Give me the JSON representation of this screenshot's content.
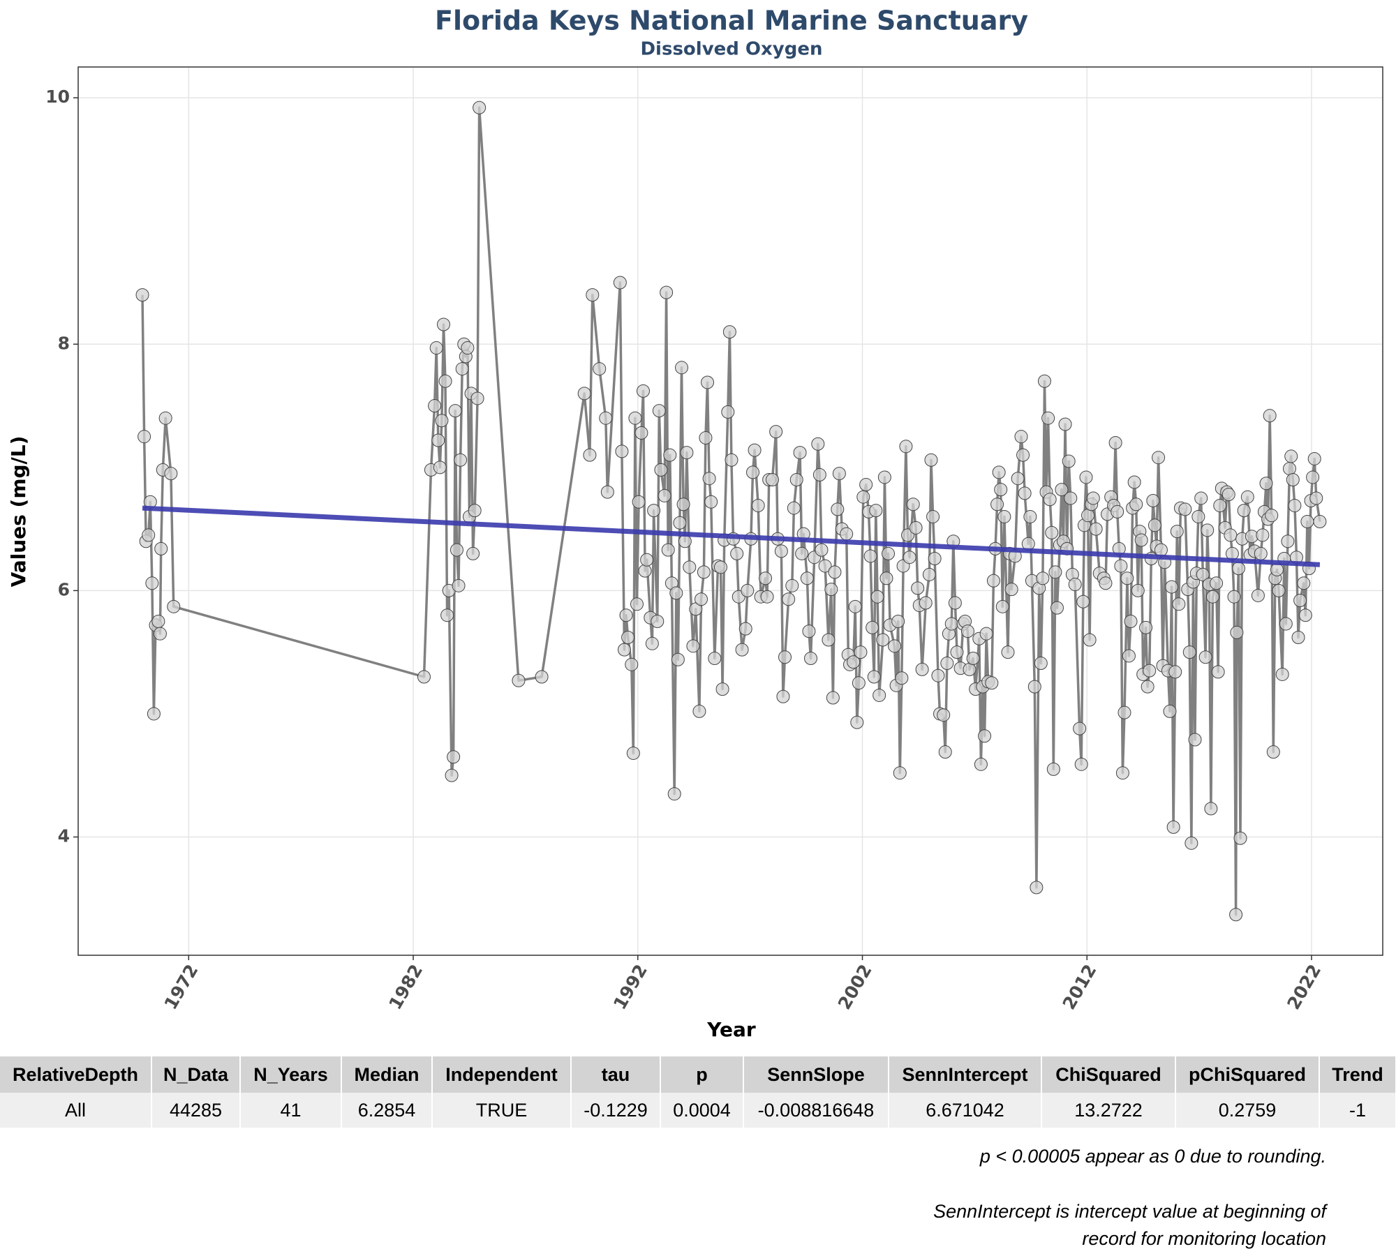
{
  "chart_data": {
    "type": "line",
    "title": "Florida Keys National Marine Sanctuary",
    "subtitle": "Dissolved Oxygen",
    "x_label": "Year",
    "y_label": "Values (mg/L)",
    "xlim": [
      1967.08,
      2025.17
    ],
    "ylim": [
      3.04,
      10.25
    ],
    "xticks": [
      1972,
      1982,
      1992,
      2002,
      2012,
      2022
    ],
    "yticks": [
      4,
      6,
      8,
      10
    ],
    "grid": true,
    "color": "#808080",
    "marker_color": "#d3d3d3",
    "x": [
      1969.94,
      1970.02,
      1970.1,
      1970.21,
      1970.29,
      1970.37,
      1970.45,
      1970.53,
      1970.65,
      1970.73,
      1970.77,
      1970.85,
      1970.97,
      1971.21,
      1971.33,
      1982.48,
      1982.79,
      1982.95,
      1983.03,
      1983.11,
      1983.19,
      1983.27,
      1983.35,
      1983.43,
      1983.51,
      1983.59,
      1983.71,
      1983.79,
      1983.87,
      1983.94,
      1984.02,
      1984.1,
      1984.18,
      1984.26,
      1984.34,
      1984.42,
      1984.5,
      1984.58,
      1984.66,
      1984.74,
      1984.86,
      1984.94,
      1986.69,
      1987.72,
      1989.62,
      1989.86,
      1989.98,
      1990.29,
      1990.57,
      1990.65,
      1991.21,
      1991.29,
      1991.4,
      1991.48,
      1991.56,
      1991.72,
      1991.8,
      1991.88,
      1991.96,
      1992.04,
      1992.16,
      1992.24,
      1992.32,
      1992.4,
      1992.56,
      1992.64,
      1992.71,
      1992.87,
      1992.95,
      1993.03,
      1993.19,
      1993.27,
      1993.35,
      1993.43,
      1993.51,
      1993.63,
      1993.71,
      1993.79,
      1993.87,
      1993.95,
      1994.03,
      1994.1,
      1994.18,
      1994.3,
      1994.46,
      1994.58,
      1994.74,
      1994.82,
      1994.94,
      1995.02,
      1995.1,
      1995.18,
      1995.26,
      1995.42,
      1995.57,
      1995.69,
      1995.77,
      1995.85,
      1996.01,
      1996.09,
      1996.17,
      1996.25,
      1996.41,
      1996.49,
      1996.64,
      1996.8,
      1996.88,
      1997.04,
      1997.12,
      1997.2,
      1997.36,
      1997.48,
      1997.68,
      1997.76,
      1997.84,
      1997.99,
      1998.15,
      1998.23,
      1998.39,
      1998.47,
      1998.55,
      1998.71,
      1998.87,
      1998.95,
      1999.07,
      1999.22,
      1999.3,
      1999.38,
      1999.54,
      1999.62,
      1999.7,
      1999.86,
      2000.02,
      2000.1,
      2000.18,
      2000.34,
      2000.49,
      2000.61,
      2000.69,
      2000.77,
      2000.89,
      2000.97,
      2001.09,
      2001.29,
      2001.37,
      2001.44,
      2001.6,
      2001.68,
      2001.76,
      2001.84,
      2001.92,
      2002.04,
      2002.16,
      2002.28,
      2002.36,
      2002.44,
      2002.52,
      2002.6,
      2002.67,
      2002.75,
      2002.91,
      2002.99,
      2003.07,
      2003.15,
      2003.23,
      2003.43,
      2003.51,
      2003.59,
      2003.67,
      2003.75,
      2003.82,
      2003.94,
      2004.02,
      2004.1,
      2004.26,
      2004.38,
      2004.46,
      2004.54,
      2004.66,
      2004.82,
      2004.98,
      2005.06,
      2005.14,
      2005.22,
      2005.37,
      2005.45,
      2005.61,
      2005.69,
      2005.77,
      2005.85,
      2005.97,
      2006.05,
      2006.13,
      2006.21,
      2006.37,
      2006.49,
      2006.57,
      2006.69,
      2006.77,
      2006.93,
      2007.04,
      2007.2,
      2007.28,
      2007.36,
      2007.44,
      2007.52,
      2007.6,
      2007.76,
      2007.84,
      2007.92,
      2008.0,
      2008.08,
      2008.16,
      2008.24,
      2008.32,
      2008.48,
      2008.56,
      2008.64,
      2008.8,
      2008.92,
      2009.07,
      2009.15,
      2009.23,
      2009.39,
      2009.47,
      2009.55,
      2009.67,
      2009.75,
      2009.87,
      2009.95,
      2010.03,
      2010.11,
      2010.19,
      2010.27,
      2010.35,
      2010.43,
      2010.51,
      2010.59,
      2010.67,
      2010.79,
      2010.87,
      2010.95,
      2011.03,
      2011.11,
      2011.19,
      2011.27,
      2011.35,
      2011.47,
      2011.67,
      2011.75,
      2011.83,
      2011.88,
      2011.96,
      2012.04,
      2012.12,
      2012.2,
      2012.28,
      2012.4,
      2012.56,
      2012.75,
      2012.83,
      2012.91,
      2013.07,
      2013.19,
      2013.27,
      2013.35,
      2013.43,
      2013.51,
      2013.59,
      2013.67,
      2013.79,
      2013.87,
      2013.95,
      2014.03,
      2014.11,
      2014.19,
      2014.27,
      2014.35,
      2014.42,
      2014.5,
      2014.62,
      2014.7,
      2014.78,
      2014.86,
      2014.94,
      2015.02,
      2015.1,
      2015.18,
      2015.3,
      2015.38,
      2015.46,
      2015.61,
      2015.69,
      2015.77,
      2015.85,
      2015.93,
      2016.01,
      2016.09,
      2016.17,
      2016.37,
      2016.49,
      2016.57,
      2016.65,
      2016.73,
      2016.81,
      2016.88,
      2016.96,
      2017.08,
      2017.16,
      2017.28,
      2017.36,
      2017.44,
      2017.52,
      2017.6,
      2017.76,
      2017.84,
      2017.92,
      2018.0,
      2018.15,
      2018.23,
      2018.31,
      2018.39,
      2018.47,
      2018.55,
      2018.63,
      2018.67,
      2018.75,
      2018.83,
      2018.91,
      2018.99,
      2019.15,
      2019.27,
      2019.34,
      2019.46,
      2019.62,
      2019.74,
      2019.82,
      2019.9,
      2019.98,
      2020.06,
      2020.14,
      2020.22,
      2020.3,
      2020.38,
      2020.46,
      2020.54,
      2020.7,
      2020.78,
      2020.86,
      2020.94,
      2021.02,
      2021.09,
      2021.17,
      2021.25,
      2021.33,
      2021.41,
      2021.49,
      2021.65,
      2021.73,
      2021.81,
      2021.89,
      2021.97,
      2022.05,
      2022.13,
      2022.21,
      2022.37
    ],
    "values": [
      8.4,
      7.25,
      6.4,
      6.45,
      6.72,
      6.06,
      5.0,
      5.72,
      5.75,
      5.65,
      6.34,
      6.98,
      7.4,
      6.95,
      5.87,
      5.3,
      6.98,
      7.5,
      7.97,
      7.22,
      7.0,
      7.38,
      8.16,
      7.7,
      5.8,
      6.0,
      4.5,
      4.65,
      7.46,
      6.33,
      6.04,
      7.06,
      7.8,
      8.0,
      7.9,
      7.97,
      6.6,
      7.6,
      6.3,
      6.65,
      7.56,
      9.92,
      5.27,
      5.3,
      7.6,
      7.1,
      8.4,
      7.8,
      7.4,
      6.8,
      8.5,
      7.13,
      5.52,
      5.8,
      5.62,
      5.4,
      4.68,
      7.4,
      5.89,
      6.72,
      7.28,
      7.62,
      6.16,
      6.25,
      5.78,
      5.57,
      6.65,
      5.75,
      7.46,
      6.98,
      6.77,
      8.42,
      6.33,
      7.1,
      6.06,
      4.35,
      5.98,
      5.44,
      6.55,
      7.81,
      6.7,
      6.4,
      7.12,
      6.19,
      5.55,
      5.85,
      5.02,
      5.93,
      6.15,
      7.24,
      7.69,
      6.91,
      6.72,
      5.45,
      6.2,
      6.19,
      5.2,
      6.41,
      7.45,
      8.1,
      7.06,
      6.42,
      6.3,
      5.95,
      5.52,
      5.69,
      6.0,
      6.42,
      6.96,
      7.14,
      6.69,
      5.95,
      6.1,
      5.95,
      6.9,
      6.9,
      7.29,
      6.42,
      6.32,
      5.14,
      5.46,
      5.93,
      6.04,
      6.67,
      6.9,
      7.12,
      6.3,
      6.46,
      6.1,
      5.67,
      5.45,
      6.27,
      7.19,
      6.94,
      6.33,
      6.2,
      5.6,
      6.01,
      5.13,
      6.15,
      6.66,
      6.95,
      6.5,
      6.46,
      5.48,
      5.4,
      5.42,
      5.87,
      4.93,
      5.25,
      5.5,
      6.76,
      6.86,
      6.64,
      6.28,
      5.7,
      5.3,
      6.65,
      5.95,
      5.15,
      5.6,
      6.92,
      6.1,
      6.3,
      5.72,
      5.55,
      5.23,
      5.75,
      4.52,
      5.29,
      6.2,
      7.17,
      6.45,
      6.27,
      6.7,
      6.51,
      6.02,
      5.88,
      5.36,
      5.9,
      6.13,
      7.06,
      6.6,
      6.26,
      5.31,
      5.0,
      4.99,
      4.69,
      5.41,
      5.65,
      5.73,
      6.4,
      5.9,
      5.5,
      5.37,
      5.73,
      5.75,
      5.67,
      5.36,
      5.45,
      5.2,
      5.61,
      4.59,
      5.22,
      4.82,
      5.65,
      5.26,
      5.25,
      6.08,
      6.34,
      6.7,
      6.96,
      6.82,
      5.87,
      6.6,
      5.5,
      6.3,
      6.01,
      6.28,
      6.91,
      7.25,
      7.1,
      6.79,
      6.38,
      6.6,
      6.08,
      5.22,
      3.59,
      6.02,
      5.41,
      6.1,
      7.7,
      6.8,
      7.4,
      6.74,
      6.47,
      4.55,
      6.15,
      5.86,
      6.37,
      6.82,
      6.4,
      7.35,
      6.34,
      7.05,
      6.75,
      6.13,
      6.05,
      4.88,
      4.59,
      5.91,
      6.53,
      6.92,
      6.61,
      5.6,
      6.7,
      6.75,
      6.5,
      6.14,
      6.1,
      6.06,
      6.62,
      6.76,
      6.69,
      7.2,
      6.64,
      6.34,
      6.2,
      4.52,
      5.01,
      6.1,
      5.47,
      5.75,
      6.67,
      6.88,
      6.7,
      6.0,
      6.48,
      6.41,
      5.32,
      5.7,
      5.22,
      5.35,
      6.26,
      6.73,
      6.53,
      6.36,
      7.08,
      6.33,
      5.39,
      6.23,
      5.35,
      5.02,
      6.03,
      4.08,
      5.34,
      6.48,
      5.89,
      6.67,
      6.66,
      6.01,
      5.5,
      3.95,
      6.07,
      4.79,
      6.14,
      6.6,
      6.75,
      6.13,
      5.46,
      6.49,
      6.05,
      4.23,
      5.95,
      6.06,
      5.34,
      6.69,
      6.83,
      6.51,
      6.8,
      6.78,
      6.45,
      6.3,
      5.95,
      3.37,
      5.66,
      6.18,
      3.99,
      6.42,
      6.65,
      6.76,
      6.29,
      6.44,
      6.32,
      5.96,
      6.3,
      6.45,
      6.64,
      6.87,
      6.58,
      7.42,
      6.61,
      4.69,
      6.1,
      6.17,
      6.0,
      5.32,
      6.26,
      5.73,
      6.4,
      6.99,
      7.09,
      6.9,
      6.69,
      6.27,
      5.62,
      5.92,
      6.06,
      5.8,
      6.56,
      6.18,
      6.73,
      6.92,
      7.07,
      6.75,
      6.56
    ],
    "trend": {
      "color": "#3a3aad",
      "x": [
        1969.94,
        2022.37
      ],
      "values": [
        6.67,
        6.21
      ]
    }
  },
  "table": {
    "columns": [
      "RelativeDepth",
      "N_Data",
      "N_Years",
      "Median",
      "Independent",
      "tau",
      "p",
      "SennSlope",
      "SennIntercept",
      "ChiSquared",
      "pChiSquared",
      "Trend"
    ],
    "rows": [
      [
        "All",
        "44285",
        "41",
        "6.2854",
        "TRUE",
        "-0.1229",
        "0.0004",
        "-0.008816648",
        "6.671042",
        "13.2722",
        "0.2759",
        "-1"
      ]
    ]
  },
  "notes": [
    "p < 0.00005 appear as 0 due to rounding.",
    "SennIntercept is intercept value at beginning of",
    "record for monitoring location"
  ]
}
